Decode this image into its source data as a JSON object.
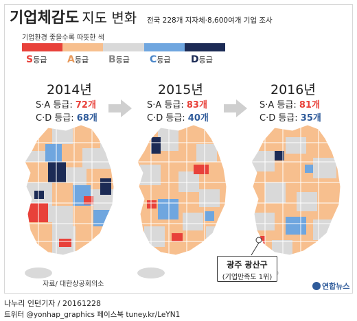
{
  "header": {
    "title": "기업체감도",
    "title_suffix": "지도 변화",
    "subtitle": "전국 228개 지자체·8,600여개 기업 조사"
  },
  "legend": {
    "caption": "기업환경 좋을수록 따뜻한 색",
    "grades": [
      {
        "letter": "S",
        "suffix": "등급",
        "color": "#e8413a"
      },
      {
        "letter": "A",
        "suffix": "등급",
        "color": "#f7bf8e"
      },
      {
        "letter": "B",
        "suffix": "등급",
        "color": "#d9d9d9"
      },
      {
        "letter": "C",
        "suffix": "등급",
        "color": "#6fa6df"
      },
      {
        "letter": "D",
        "suffix": "등급",
        "color": "#1c2b55"
      }
    ]
  },
  "maps": [
    {
      "year": "2014년",
      "sa_label": "S·A 등급:",
      "sa_value": "72개",
      "cd_label": "C·D 등급:",
      "cd_value": "68개"
    },
    {
      "year": "2015년",
      "sa_label": "S·A 등급:",
      "sa_value": "83개",
      "cd_label": "C·D 등급:",
      "cd_value": "40개"
    },
    {
      "year": "2016년",
      "sa_label": "S·A 등급:",
      "sa_value": "81개",
      "cd_label": "C·D 등급:",
      "cd_value": "35개"
    }
  ],
  "callout": {
    "line1": "광주 광산구",
    "line2": "(기업만족도 1위)"
  },
  "source": "자료/ 대한상공회의소",
  "logo": "연합뉴스",
  "byline": "나누리 인턴기자 / 20161228",
  "social": "트위터 @yonhap_graphics  페이스북 tuney.kr/LeYN1"
}
